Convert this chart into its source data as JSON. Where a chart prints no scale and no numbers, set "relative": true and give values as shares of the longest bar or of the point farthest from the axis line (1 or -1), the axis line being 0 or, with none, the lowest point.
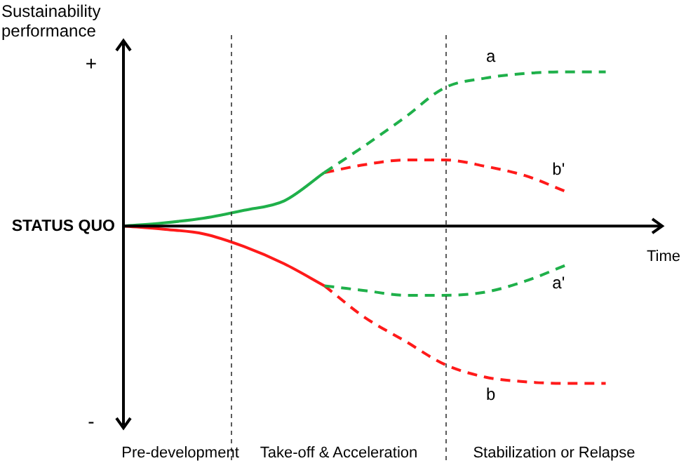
{
  "chart_data": {
    "type": "line",
    "relative": true,
    "ylabel": "Sustainability performance",
    "xlabel": "Time",
    "marker": "none",
    "legend": false,
    "categories": [
      null,
      null,
      null,
      null,
      null,
      null,
      null,
      null,
      null,
      null,
      null,
      null,
      null
    ],
    "series": [
      {
        "color": "#1fb04a",
        "line_style": "solid",
        "values": [
          0,
          0.02,
          0.05,
          0.1,
          0.16,
          0.34,
          null,
          null,
          null,
          null,
          null,
          null,
          null
        ]
      },
      {
        "color": "#ff1a1a",
        "line_style": "solid",
        "values": [
          0,
          -0.02,
          -0.05,
          -0.13,
          -0.24,
          -0.38,
          null,
          null,
          null,
          null,
          null,
          null,
          null
        ]
      },
      {
        "name": "a",
        "color": "#1fb04a",
        "line_style": "dashed",
        "values": [
          null,
          null,
          null,
          null,
          null,
          0.34,
          0.51,
          0.69,
          0.88,
          0.94,
          0.97,
          0.98,
          0.98
        ]
      },
      {
        "name": "b'",
        "color": "#ff1a1a",
        "line_style": "dashed",
        "values": [
          null,
          null,
          null,
          null,
          null,
          0.34,
          0.39,
          0.42,
          0.42,
          0.38,
          0.32,
          0.22,
          null
        ]
      },
      {
        "name": "a'",
        "color": "#1fb04a",
        "line_style": "dashed",
        "values": [
          null,
          null,
          null,
          null,
          null,
          -0.38,
          -0.41,
          -0.44,
          -0.44,
          -0.42,
          -0.35,
          -0.25,
          null
        ]
      },
      {
        "name": "b",
        "color": "#ff1a1a",
        "line_style": "dashed",
        "values": [
          null,
          null,
          null,
          null,
          null,
          -0.38,
          -0.58,
          -0.73,
          -0.88,
          -0.96,
          -0.99,
          -1,
          -1
        ]
      }
    ],
    "annotations": [
      "+",
      "STATUS QUO",
      "-",
      "Pre-development",
      "Take-off & Acceleration",
      "Stabilization or Relapse"
    ]
  }
}
